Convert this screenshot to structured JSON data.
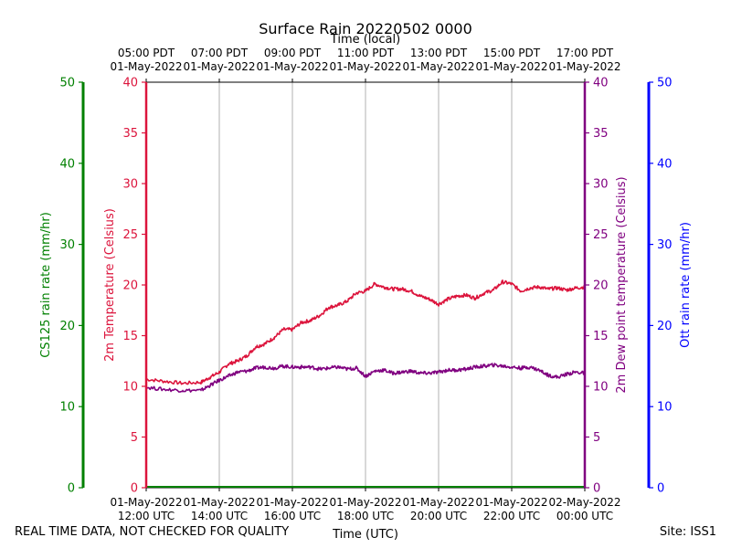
{
  "footer": {
    "quality_note": "REAL TIME DATA, NOT CHECKED FOR QUALITY",
    "site": "Site: ISS1"
  },
  "colors": {
    "cs125": "#008000",
    "temperature": "#dc143c",
    "dewpoint": "#800080",
    "ott": "#0000ff",
    "grid": "#b0b0b0",
    "axis": "#000000"
  },
  "chart_data": {
    "type": "line",
    "title": "Surface Rain 20220502 0000",
    "xlabel": "Time (UTC)",
    "top_xlabel": "Time (local)",
    "x_range_hours_utc": [
      12,
      24
    ],
    "x_ticks_utc": [
      {
        "hour": 12,
        "date": "01-May-2022",
        "time": "12:00 UTC"
      },
      {
        "hour": 14,
        "date": "01-May-2022",
        "time": "14:00 UTC"
      },
      {
        "hour": 16,
        "date": "01-May-2022",
        "time": "16:00 UTC"
      },
      {
        "hour": 18,
        "date": "01-May-2022",
        "time": "18:00 UTC"
      },
      {
        "hour": 20,
        "date": "01-May-2022",
        "time": "20:00 UTC"
      },
      {
        "hour": 22,
        "date": "01-May-2022",
        "time": "22:00 UTC"
      },
      {
        "hour": 24,
        "date": "02-May-2022",
        "time": "00:00 UTC"
      }
    ],
    "x_ticks_local": [
      {
        "hour": 12,
        "time": "05:00 PDT",
        "date": "01-May-2022"
      },
      {
        "hour": 14,
        "time": "07:00 PDT",
        "date": "01-May-2022"
      },
      {
        "hour": 16,
        "time": "09:00 PDT",
        "date": "01-May-2022"
      },
      {
        "hour": 18,
        "time": "11:00 PDT",
        "date": "01-May-2022"
      },
      {
        "hour": 20,
        "time": "13:00 PDT",
        "date": "01-May-2022"
      },
      {
        "hour": 22,
        "time": "15:00 PDT",
        "date": "01-May-2022"
      },
      {
        "hour": 24,
        "time": "17:00 PDT",
        "date": "01-May-2022"
      }
    ],
    "y_axes": {
      "cs125": {
        "label": "CS125 rain rate (mm/hr)",
        "ylim": [
          0,
          50
        ],
        "ticks": [
          0,
          10,
          20,
          30,
          40,
          50
        ]
      },
      "temperature": {
        "label": "2m Temperature (Celsius)",
        "ylim": [
          0,
          40
        ],
        "ticks": [
          0,
          5,
          10,
          15,
          20,
          25,
          30,
          35,
          40
        ]
      },
      "dewpoint": {
        "label": "2m Dew point temperature (Celsius)",
        "ylim": [
          0,
          40
        ],
        "ticks": [
          0,
          5,
          10,
          15,
          20,
          25,
          30,
          35,
          40
        ]
      },
      "ott": {
        "label": "Ott rain rate (mm/hr)",
        "ylim": [
          0,
          50
        ],
        "ticks": [
          0,
          10,
          20,
          30,
          40,
          50
        ]
      }
    },
    "series": [
      {
        "name": "2m Temperature",
        "axis": "temperature",
        "x": [
          12.0,
          12.5,
          13.0,
          13.5,
          13.75,
          14.0,
          14.25,
          14.5,
          14.75,
          15.0,
          15.25,
          15.5,
          15.75,
          16.0,
          16.25,
          16.5,
          16.75,
          17.0,
          17.25,
          17.5,
          17.75,
          18.0,
          18.25,
          18.5,
          18.75,
          19.0,
          19.25,
          19.5,
          19.75,
          20.0,
          20.25,
          20.5,
          20.75,
          21.0,
          21.25,
          21.5,
          21.75,
          22.0,
          22.25,
          22.5,
          22.75,
          23.0,
          23.25,
          23.5,
          23.75,
          24.0
        ],
        "values": [
          10.7,
          10.5,
          10.3,
          10.4,
          10.9,
          11.4,
          12.2,
          12.5,
          13.0,
          13.9,
          14.2,
          14.8,
          15.6,
          15.6,
          16.3,
          16.5,
          17.0,
          17.8,
          18.0,
          18.4,
          19.2,
          19.4,
          20.1,
          19.8,
          19.6,
          19.6,
          19.4,
          18.9,
          18.6,
          18.1,
          18.6,
          18.9,
          19.0,
          18.7,
          19.2,
          19.5,
          20.3,
          20.1,
          19.4,
          19.7,
          19.8,
          19.6,
          19.7,
          19.5,
          19.7,
          19.8
        ]
      },
      {
        "name": "2m Dew point temperature",
        "axis": "dewpoint",
        "x": [
          12.0,
          12.5,
          13.0,
          13.5,
          13.75,
          14.0,
          14.25,
          14.5,
          14.75,
          15.0,
          15.25,
          15.5,
          15.75,
          16.0,
          16.25,
          16.5,
          16.75,
          17.0,
          17.25,
          17.5,
          17.75,
          18.0,
          18.25,
          18.5,
          18.75,
          19.0,
          19.25,
          19.5,
          19.75,
          20.0,
          20.25,
          20.5,
          20.75,
          21.0,
          21.25,
          21.5,
          21.75,
          22.0,
          22.25,
          22.5,
          22.75,
          23.0,
          23.25,
          23.5,
          23.75,
          24.0
        ],
        "values": [
          9.9,
          9.7,
          9.6,
          9.6,
          10.1,
          10.6,
          11.0,
          11.4,
          11.5,
          11.8,
          11.9,
          11.8,
          12.0,
          11.9,
          11.9,
          11.9,
          11.7,
          11.8,
          11.9,
          11.7,
          11.8,
          11.0,
          11.5,
          11.6,
          11.3,
          11.4,
          11.5,
          11.3,
          11.3,
          11.4,
          11.6,
          11.6,
          11.7,
          11.9,
          12.0,
          12.1,
          12.0,
          11.9,
          11.8,
          11.9,
          11.6,
          11.1,
          10.9,
          11.2,
          11.4,
          11.3
        ]
      }
    ]
  }
}
